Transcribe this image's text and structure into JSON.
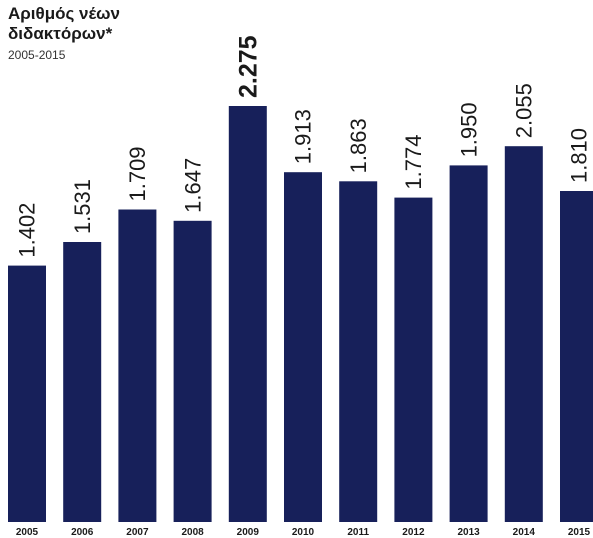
{
  "header": {
    "title_lines": [
      "Αριθμός νέων",
      "διδακτόρων*"
    ],
    "subtitle": "2005-2015"
  },
  "chart_data": {
    "type": "bar",
    "title": "Αριθμός νέων διδακτόρων*",
    "subtitle": "2005-2015",
    "xlabel": "",
    "ylabel": "",
    "categories": [
      "2005",
      "2006",
      "2007",
      "2008",
      "2009",
      "2010",
      "2011",
      "2012",
      "2013",
      "2014",
      "2015"
    ],
    "values": [
      1402,
      1531,
      1709,
      1647,
      2275,
      1913,
      1863,
      1774,
      1950,
      2055,
      1810
    ],
    "labels": [
      "1.402",
      "1.531",
      "1.709",
      "1.647",
      "2.275",
      "1.913",
      "1.863",
      "1.774",
      "1.950",
      "2.055",
      "1.810"
    ],
    "highlight_index": 4,
    "grid": false,
    "legend": "none",
    "bar_color": "#17205a"
  }
}
